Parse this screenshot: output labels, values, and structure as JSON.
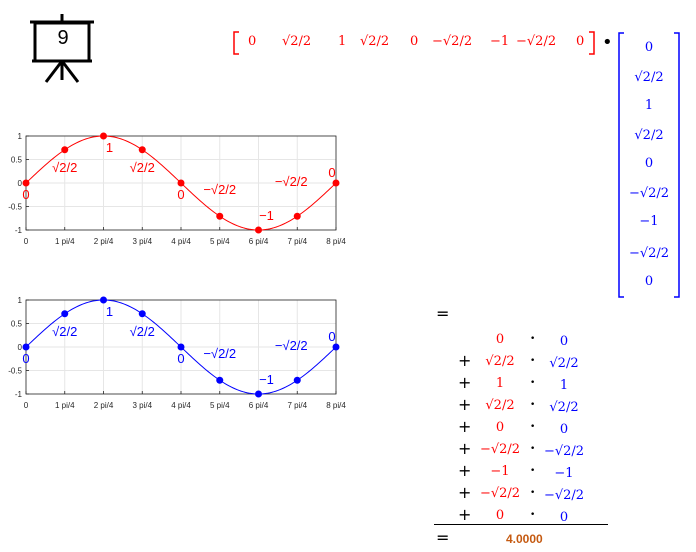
{
  "slide": {
    "number": "9"
  },
  "row_vector": [
    "0",
    "√2/2",
    "1",
    "√2/2",
    "0",
    "−√2/2",
    "−1",
    "−√2/2",
    "0"
  ],
  "col_vector": [
    "0",
    "√2/2",
    "1",
    "√2/2",
    "0",
    "−√2/2",
    "−1",
    "−√2/2",
    "0"
  ],
  "dot_symbol": "•",
  "equals": "=",
  "plus": "+",
  "result": "4.0000",
  "sum_terms": [
    {
      "a": "0",
      "b": "0"
    },
    {
      "a": "√2/2",
      "b": "√2/2"
    },
    {
      "a": "1",
      "b": "1"
    },
    {
      "a": "√2/2",
      "b": "√2/2"
    },
    {
      "a": "0",
      "b": "0"
    },
    {
      "a": "−√2/2",
      "b": "−√2/2"
    },
    {
      "a": "−1",
      "b": "−1"
    },
    {
      "a": "−√2/2",
      "b": "−√2/2"
    },
    {
      "a": "0",
      "b": "0"
    }
  ],
  "colors": {
    "red": "#ff0000",
    "blue": "#0000ff",
    "result": "#c55a11",
    "axis": "#262626",
    "grid": "#e6e6e6"
  },
  "chart_data": [
    {
      "type": "line",
      "x_tick_labels": [
        "0",
        "1 pi/4",
        "2 pi/4",
        "3 pi/4",
        "4 pi/4",
        "5 pi/4",
        "6 pi/4",
        "7 pi/4",
        "8 pi/4"
      ],
      "y_tick_labels": [
        "1",
        "0.5",
        "0",
        "-0.5",
        "-1"
      ],
      "y_ticks": [
        1,
        0.5,
        0,
        -0.5,
        -1
      ],
      "ylim": [
        -1,
        1
      ],
      "x": [
        0,
        1,
        2,
        3,
        4,
        5,
        6,
        7,
        8
      ],
      "values": [
        0,
        0.7071,
        1,
        0.7071,
        0,
        -0.7071,
        -1,
        -0.7071,
        0
      ],
      "point_labels": [
        "0",
        "√2/2",
        "1",
        "√2/2",
        "0",
        "−√2/2",
        "−1",
        "−√2/2",
        "0"
      ],
      "color": "#ff0000",
      "grid": true
    },
    {
      "type": "line",
      "x_tick_labels": [
        "0",
        "1 pi/4",
        "2 pi/4",
        "3 pi/4",
        "4 pi/4",
        "5 pi/4",
        "6 pi/4",
        "7 pi/4",
        "8 pi/4"
      ],
      "y_tick_labels": [
        "1",
        "0.5",
        "0",
        "-0.5",
        "-1"
      ],
      "y_ticks": [
        1,
        0.5,
        0,
        -0.5,
        -1
      ],
      "ylim": [
        -1,
        1
      ],
      "x": [
        0,
        1,
        2,
        3,
        4,
        5,
        6,
        7,
        8
      ],
      "values": [
        0,
        0.7071,
        1,
        0.7071,
        0,
        -0.7071,
        -1,
        -0.7071,
        0
      ],
      "point_labels": [
        "0",
        "√2/2",
        "1",
        "√2/2",
        "0",
        "−√2/2",
        "−1",
        "−√2/2",
        "0"
      ],
      "color": "#0000ff",
      "grid": true
    }
  ]
}
